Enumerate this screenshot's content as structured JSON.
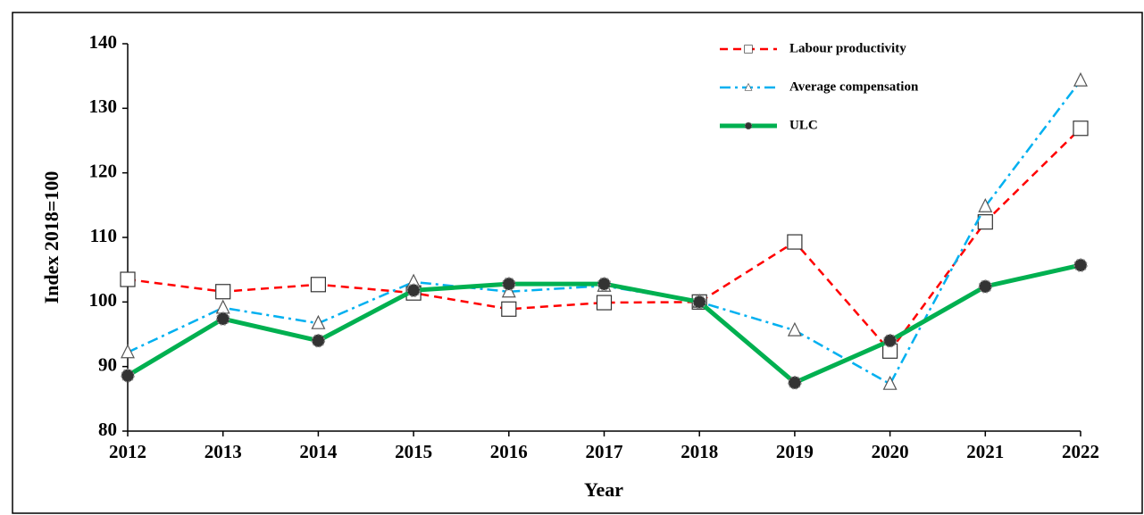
{
  "chart_data": {
    "type": "line",
    "x": [
      2012,
      2013,
      2014,
      2015,
      2016,
      2017,
      2018,
      2019,
      2020,
      2021,
      2022
    ],
    "xlim": [
      2012,
      2022
    ],
    "xticks": [
      2012,
      2013,
      2014,
      2015,
      2016,
      2017,
      2018,
      2019,
      2020,
      2021,
      2022
    ],
    "ylim": [
      80,
      140
    ],
    "yticks": [
      80,
      90,
      100,
      110,
      120,
      130,
      140
    ],
    "xlabel": "Year",
    "ylabel": "Index 2018=100",
    "legend": "upper right",
    "series": [
      {
        "name": "Labour productivity",
        "color": "#ff0000",
        "marker": "square",
        "linestyle": "dashed",
        "values": [
          103.5,
          101.6,
          102.7,
          101.4,
          98.9,
          99.9,
          100,
          109.3,
          92.4,
          112.4,
          126.9
        ]
      },
      {
        "name": "Average compensation",
        "color": "#00b0f0",
        "marker": "triangle",
        "linestyle": "dashdot",
        "values": [
          92.2,
          99.1,
          96.7,
          103.1,
          101.6,
          102.5,
          100,
          95.6,
          87.3,
          114.8,
          134.3
        ]
      },
      {
        "name": "ULC",
        "color": "#00b050",
        "marker": "circle",
        "linestyle": "solid",
        "values": [
          88.6,
          97.4,
          94,
          101.8,
          102.8,
          102.8,
          100,
          87.5,
          94,
          102.4,
          105.7
        ]
      }
    ]
  }
}
